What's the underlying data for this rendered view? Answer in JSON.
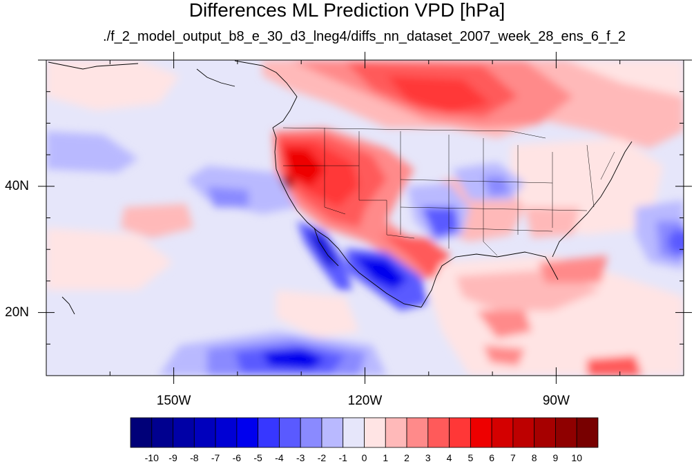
{
  "title": "Differences ML Prediction VPD [hPa]",
  "subtitle": "./f_2_model_output_b8_e_30_d3_lneg4/diffs_nn_dataset_2007_week_28_ens_6_f_2",
  "map": {
    "lon_range": [
      -170,
      -70
    ],
    "lat_range": [
      10,
      60
    ],
    "lat_labels": [
      {
        "lat": 40,
        "label": "40N"
      },
      {
        "lat": 20,
        "label": "20N"
      }
    ],
    "lon_labels": [
      {
        "lon": -150,
        "label": "150W"
      },
      {
        "lon": -120,
        "label": "120W"
      },
      {
        "lon": -90,
        "label": "90W"
      }
    ]
  },
  "colorbar": {
    "levels": [
      "-10",
      "-9",
      "-8",
      "-7",
      "-6",
      "-5",
      "-4",
      "-3",
      "-2",
      "-1",
      "0",
      "1",
      "2",
      "3",
      "4",
      "5",
      "6",
      "7",
      "8",
      "9",
      "10"
    ],
    "colors": [
      "#000078",
      "#00008f",
      "#0000a6",
      "#0000bd",
      "#0000d4",
      "#0000ee",
      "#3737ff",
      "#5a5aff",
      "#8a8aff",
      "#b9b9ff",
      "#e6e6fa",
      "#ffe4e4",
      "#ffb9b9",
      "#ff8a8a",
      "#ff5a5a",
      "#ff3737",
      "#ee0000",
      "#d40000",
      "#bd0000",
      "#a60000",
      "#8f0000",
      "#780000"
    ]
  }
}
